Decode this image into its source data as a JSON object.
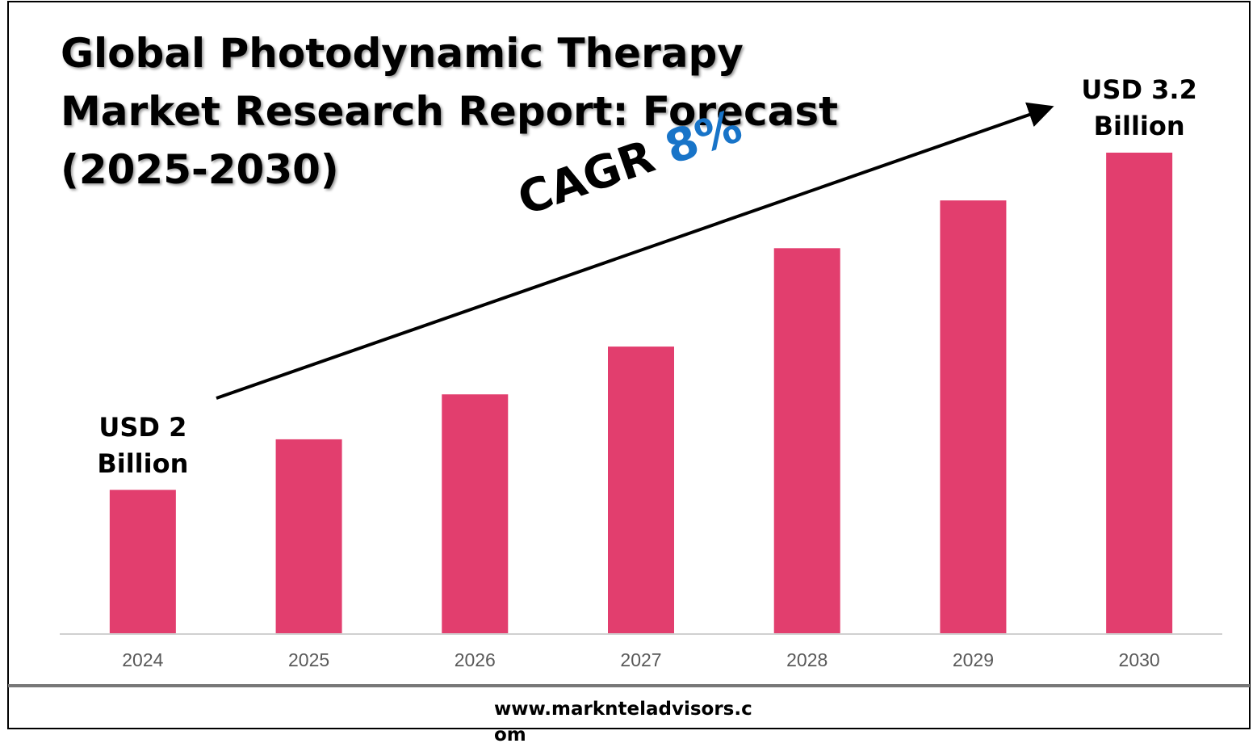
{
  "chart_data": {
    "type": "bar",
    "title": "Global Photodynamic Therapy Market Research Report: Forecast (2025-2030)",
    "categories": [
      "2024",
      "2025",
      "2026",
      "2027",
      "2028",
      "2029",
      "2030"
    ],
    "values": [
      2,
      2.18,
      2.34,
      2.51,
      2.86,
      3.03,
      3.2
    ],
    "value_labels": [
      "USD 2 Billion",
      null,
      null,
      null,
      null,
      null,
      "USD 3.2 Billion"
    ],
    "color": "#e23e6e",
    "ylim": [
      1.49,
      3.2
    ],
    "cagr_text": "CAGR",
    "cagr": {
      "value": 8,
      "label": "8%"
    },
    "source": "www.marknteladvisors.com"
  }
}
